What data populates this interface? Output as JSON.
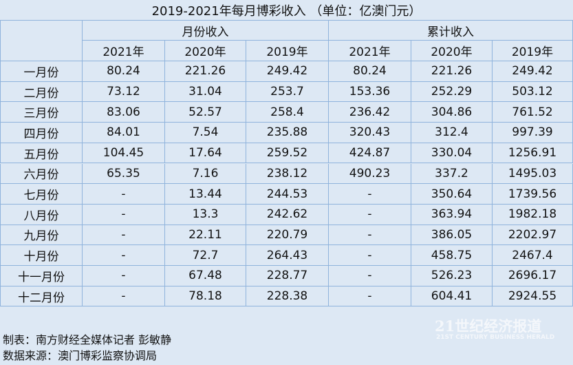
{
  "title": "2019-2021年每月博彩收入 （单位：亿澳门元）",
  "table": {
    "groups": [
      "月份收入",
      "累计收入"
    ],
    "columns": [
      "2021年",
      "2020年",
      "2019年",
      "2021年",
      "2020年",
      "2019年"
    ],
    "rows": [
      [
        "一月份",
        80.24,
        221.26,
        249.42,
        80.24,
        221.26,
        249.42
      ],
      [
        "二月份",
        73.12,
        31.04,
        253.7,
        153.36,
        252.29,
        503.12
      ],
      [
        "三月份",
        83.06,
        52.57,
        258.4,
        236.42,
        304.86,
        761.52
      ],
      [
        "四月份",
        84.01,
        7.54,
        235.88,
        320.43,
        312.4,
        997.39
      ],
      [
        "五月份",
        104.45,
        17.64,
        259.52,
        424.87,
        330.04,
        1256.91
      ],
      [
        "六月份",
        65.35,
        7.16,
        238.12,
        490.23,
        337.2,
        1495.03
      ],
      [
        "七月份",
        "-",
        13.44,
        244.53,
        "-",
        350.64,
        1739.56
      ],
      [
        "八月份",
        "-",
        13.3,
        242.62,
        "-",
        363.94,
        1982.18
      ],
      [
        "九月份",
        "-",
        22.11,
        220.79,
        "-",
        386.05,
        2202.97
      ],
      [
        "十月份",
        "-",
        72.7,
        264.43,
        "-",
        458.75,
        2467.4
      ],
      [
        "十一月份",
        "-",
        67.48,
        228.77,
        "-",
        526.23,
        2696.17
      ],
      [
        "十二月份",
        "-",
        78.18,
        228.38,
        "-",
        604.41,
        2924.55
      ]
    ]
  },
  "footer": {
    "author": "制表：南方财经全媒体记者 彭敏静",
    "source": "数据来源：澳门博彩监察协调局"
  },
  "watermark": {
    "name": "21世纪经济报道",
    "subtitle": "21ST CENTURY BUSINESS HERALD"
  }
}
